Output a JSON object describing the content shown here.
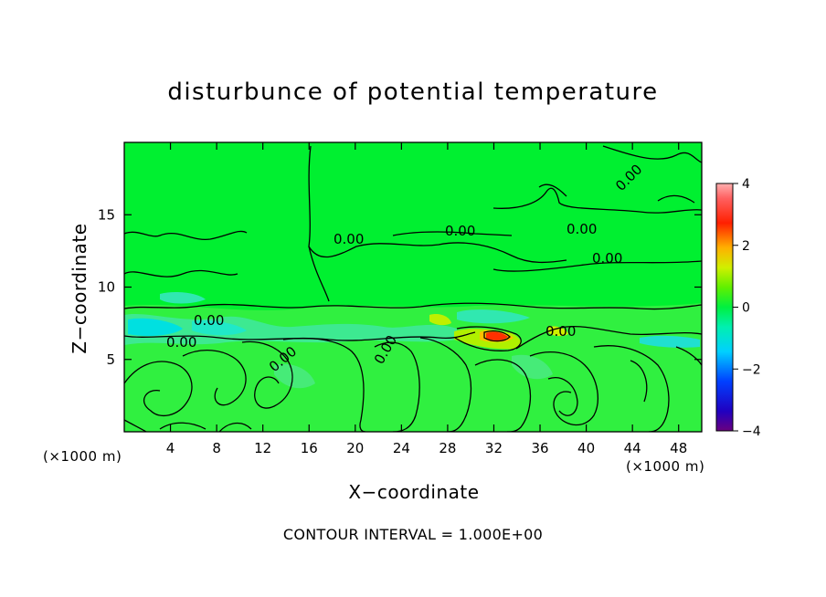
{
  "chart_data": {
    "type": "heatmap",
    "title": "disturbunce of potential temperature",
    "xlabel": "X−coordinate",
    "ylabel": "Z−coordinate",
    "x_unit": "(×1000 m)",
    "z_unit": "(×1000 m)",
    "footnote": "CONTOUR INTERVAL = 1.000E+00",
    "xlim": [
      0,
      50
    ],
    "ylim": [
      0,
      20
    ],
    "x_ticks": [
      4,
      8,
      12,
      16,
      20,
      24,
      28,
      32,
      36,
      40,
      44,
      48
    ],
    "y_ticks": [
      5,
      10,
      15
    ],
    "colorbar": {
      "range": [
        -4,
        4
      ],
      "ticks": [
        4,
        2,
        0,
        -2,
        -4
      ]
    },
    "contour_interval": 1.0,
    "contour_labels": [
      "0.00",
      "0.00",
      "0.00",
      "0.00",
      "0.00",
      "0.00",
      "0.00",
      "0.00",
      "0.00",
      "0.00"
    ],
    "background_value": 0.0,
    "features": [
      {
        "region": "upper atmosphere z>9",
        "value": 0.0
      },
      {
        "region": "cool band z 6.5-8.5 near x 0-14",
        "value": -0.8
      },
      {
        "region": "warm maximum near x=32-33, z=6.5",
        "value": 2.5
      },
      {
        "region": "weak warm patches near x=28-30 and x=37",
        "value": 1.0
      },
      {
        "region": "lower layer convective cells z<6",
        "value": -0.3
      }
    ]
  }
}
